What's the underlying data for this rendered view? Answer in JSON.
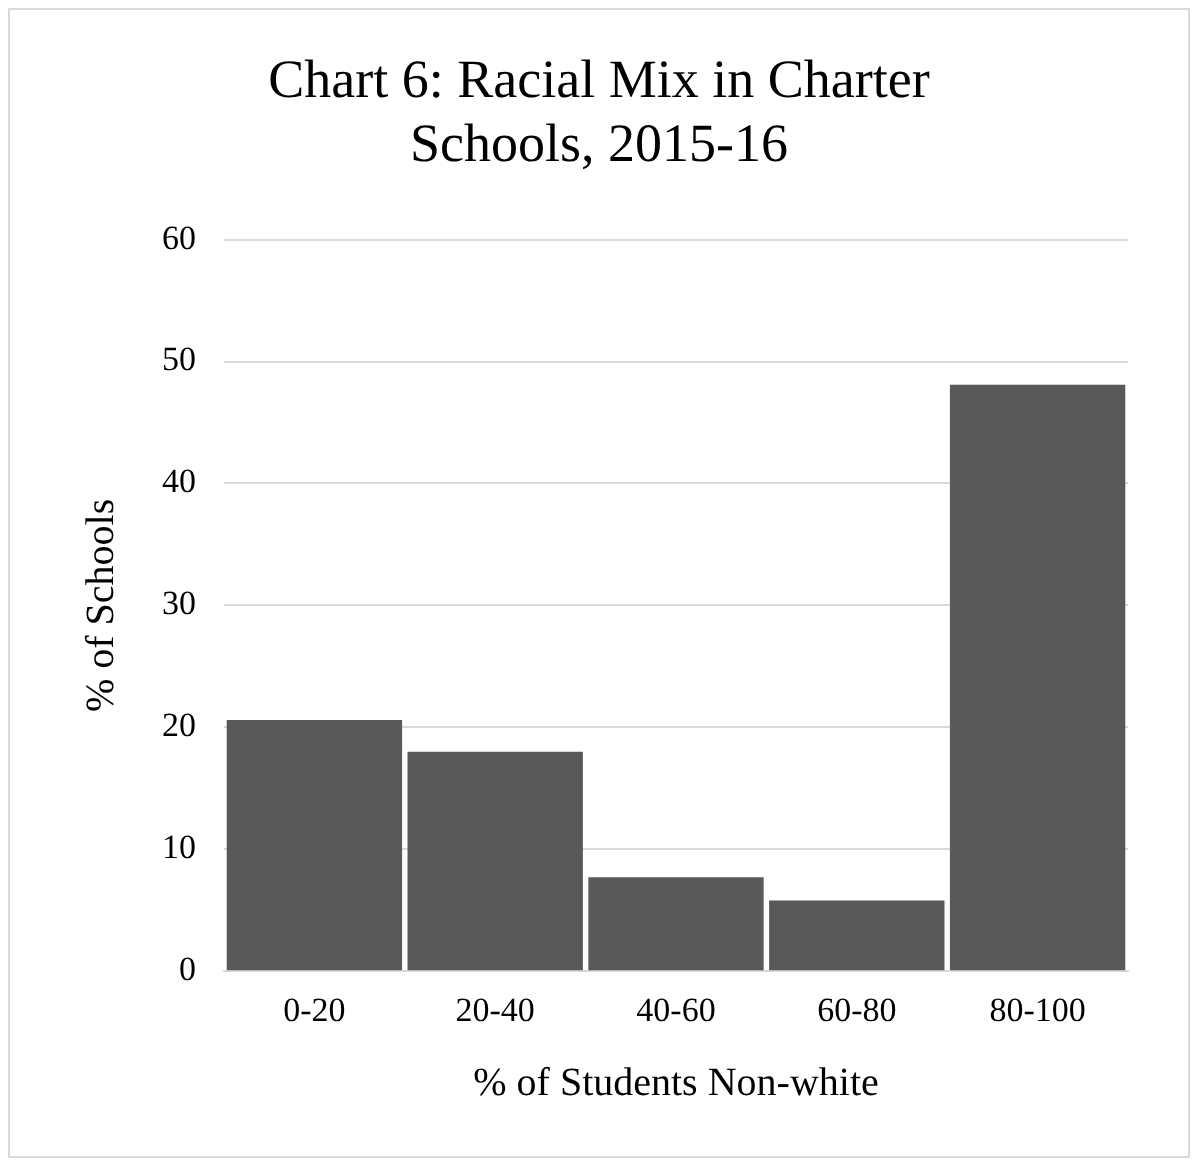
{
  "chart_data": {
    "type": "bar",
    "title": "Chart 6: Racial Mix in Charter Schools, 2015-16",
    "xlabel": "% of Students Non-white",
    "ylabel": "% of Schools",
    "categories": [
      "0-20",
      "20-40",
      "40-60",
      "60-80",
      "80-100"
    ],
    "values": [
      20.6,
      18,
      7.7,
      5.8,
      48.1
    ],
    "color": "#595959",
    "ylim": [
      0,
      60
    ],
    "yticks": [
      0,
      10,
      20,
      30,
      40,
      50,
      60
    ],
    "grid": "y"
  }
}
